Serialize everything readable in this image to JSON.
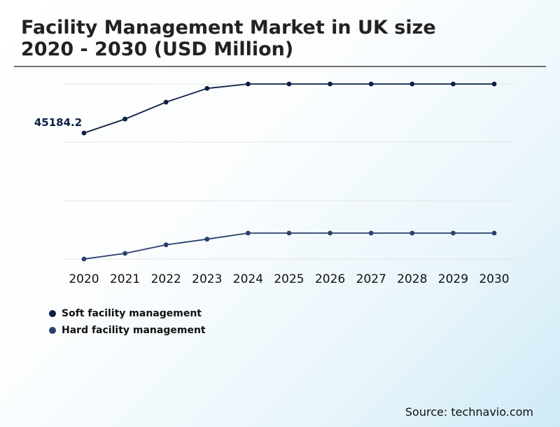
{
  "header": {
    "title_line1": "Facility Management Market in UK size",
    "title_line2": "2020 - 2030 (USD Million)"
  },
  "source": "Source: technavio.com",
  "colors": {
    "soft": "#0d1f45",
    "hard": "#2b3f6e",
    "grid": "#e4e4e4"
  },
  "chart_data": {
    "type": "line",
    "categories": [
      "2020",
      "2021",
      "2022",
      "2023",
      "2024",
      "2025",
      "2026",
      "2027",
      "2028",
      "2029",
      "2030"
    ],
    "series": [
      {
        "name": "Soft facility management",
        "values": [
          45184.2,
          46300,
          47650,
          48750,
          49100,
          49100,
          49100,
          49100,
          49100,
          49100,
          49100
        ]
      },
      {
        "name": "Hard facility management",
        "values": [
          30000,
          30550,
          31400,
          31950,
          32550,
          32550,
          32550,
          32550,
          32550,
          32550,
          32550
        ]
      }
    ],
    "annotations": [
      {
        "series": 0,
        "index": 0,
        "label": "45184.2"
      }
    ],
    "grid": true,
    "legend": "bottom-left"
  }
}
